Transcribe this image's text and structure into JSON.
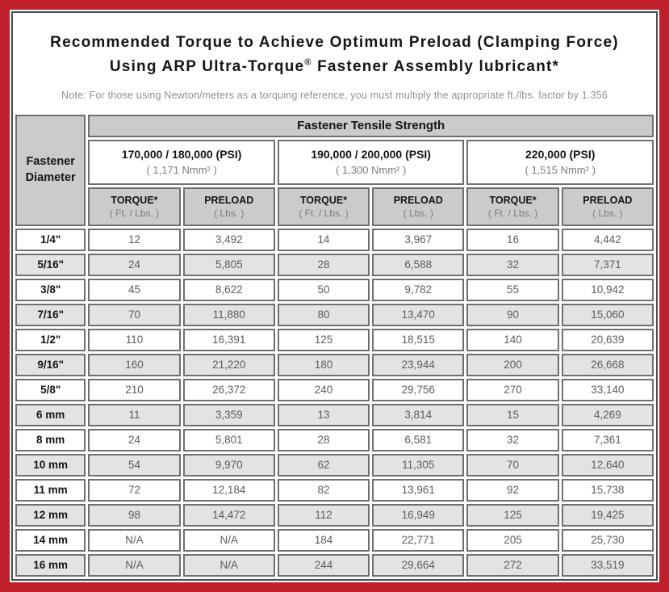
{
  "colors": {
    "frame_red": "#c1202a",
    "panel_border": "#4d4d4d",
    "header_gray": "#cbcbcb",
    "alt_row_gray": "#e3e3e3",
    "cell_border": "#6f6f6f"
  },
  "title": {
    "line1": "Recommended Torque to Achieve Optimum Preload (Clamping Force)",
    "line2_pre": "Using ARP Ultra-Torque",
    "line2_reg": "®",
    "line2_post": " Fastener Assembly lubricant*",
    "note": "Note: For those using Newton/meters as a torquing reference, you must multiply the appropriate ft./lbs. factor by 1.356"
  },
  "table": {
    "corner_header": "Fastener Diameter",
    "band_header": "Fastener Tensile Strength",
    "strength_groups": [
      {
        "psi": "170,000 / 180,000 (PSI)",
        "nmm": "( 1,171 Nmm² )"
      },
      {
        "psi": "190,000 / 200,000 (PSI)",
        "nmm": "( 1,300 Nmm² )"
      },
      {
        "psi": "220,000 (PSI)",
        "nmm": "( 1,515 Nmm² )"
      }
    ],
    "col_headers": [
      {
        "label": "TORQUE*",
        "sub": "( Ft. / Lbs. )"
      },
      {
        "label": "PRELOAD",
        "sub": "( Lbs. )"
      },
      {
        "label": "TORQUE*",
        "sub": "( Ft. / Lbs. )"
      },
      {
        "label": "PRELOAD",
        "sub": "( Lbs. )"
      },
      {
        "label": "TORQUE*",
        "sub": "( Ft. / Lbs. )"
      },
      {
        "label": "PRELOAD",
        "sub": "( Lbs. )"
      }
    ],
    "rows": [
      {
        "diameter": "1/4\"",
        "values": [
          "12",
          "3,492",
          "14",
          "3,967",
          "16",
          "4,442"
        ]
      },
      {
        "diameter": "5/16\"",
        "values": [
          "24",
          "5,805",
          "28",
          "6,588",
          "32",
          "7,371"
        ]
      },
      {
        "diameter": "3/8\"",
        "values": [
          "45",
          "8,622",
          "50",
          "9,782",
          "55",
          "10,942"
        ]
      },
      {
        "diameter": "7/16\"",
        "values": [
          "70",
          "11,880",
          "80",
          "13,470",
          "90",
          "15,060"
        ]
      },
      {
        "diameter": "1/2\"",
        "values": [
          "110",
          "16,391",
          "125",
          "18,515",
          "140",
          "20,639"
        ]
      },
      {
        "diameter": "9/16\"",
        "values": [
          "160",
          "21,220",
          "180",
          "23,944",
          "200",
          "26,668"
        ]
      },
      {
        "diameter": "5/8\"",
        "values": [
          "210",
          "26,372",
          "240",
          "29,756",
          "270",
          "33,140"
        ]
      },
      {
        "diameter": "6 mm",
        "values": [
          "11",
          "3,359",
          "13",
          "3,814",
          "15",
          "4,269"
        ]
      },
      {
        "diameter": "8 mm",
        "values": [
          "24",
          "5,801",
          "28",
          "6,581",
          "32",
          "7,361"
        ]
      },
      {
        "diameter": "10 mm",
        "values": [
          "54",
          "9,970",
          "62",
          "11,305",
          "70",
          "12,640"
        ]
      },
      {
        "diameter": "11 mm",
        "values": [
          "72",
          "12,184",
          "82",
          "13,961",
          "92",
          "15,738"
        ]
      },
      {
        "diameter": "12 mm",
        "values": [
          "98",
          "14,472",
          "112",
          "16,949",
          "125",
          "19,425"
        ]
      },
      {
        "diameter": "14 mm",
        "values": [
          "N/A",
          "N/A",
          "184",
          "22,771",
          "205",
          "25,730"
        ]
      },
      {
        "diameter": "16 mm",
        "values": [
          "N/A",
          "N/A",
          "244",
          "29,664",
          "272",
          "33,519"
        ]
      }
    ]
  }
}
